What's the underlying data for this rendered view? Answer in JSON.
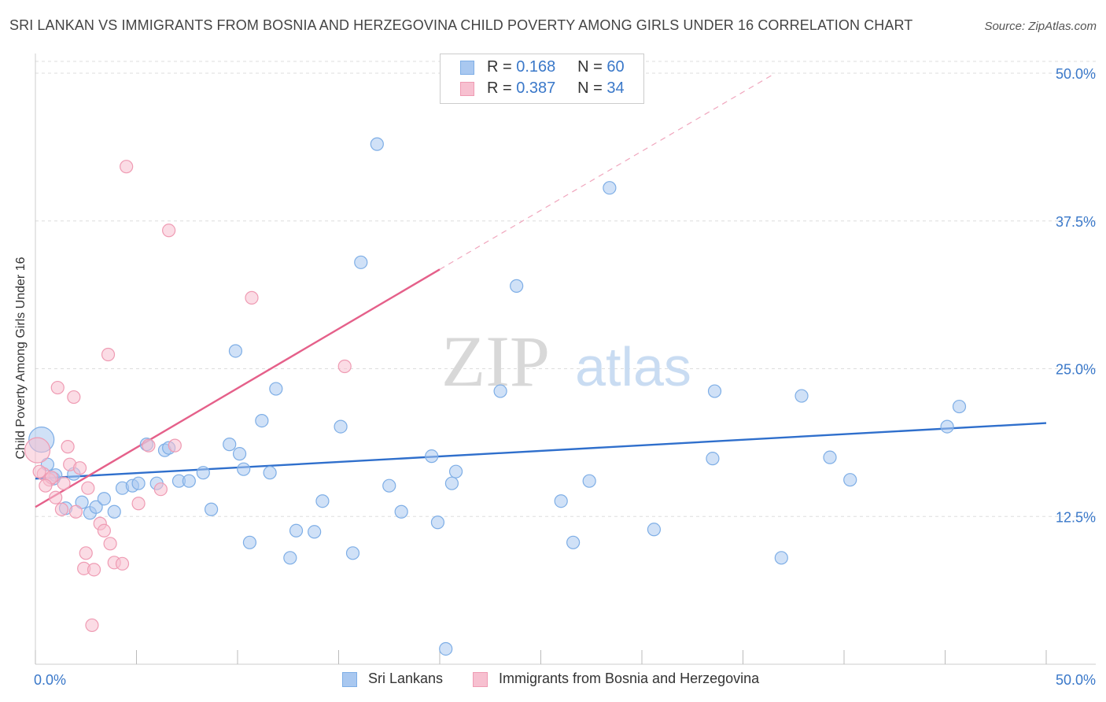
{
  "title": "SRI LANKAN VS IMMIGRANTS FROM BOSNIA AND HERZEGOVINA CHILD POVERTY AMONG GIRLS UNDER 16 CORRELATION CHART",
  "source": "Source: ZipAtlas.com",
  "watermark": {
    "zip": "ZIP",
    "atlas": "atlas"
  },
  "legend_top": [
    {
      "r_label": "R =",
      "r_value": "0.168",
      "n_label": "N =",
      "n_value": "60",
      "color": "#a9c8f0",
      "border": "#7eaee6"
    },
    {
      "r_label": "R =",
      "r_value": "0.387",
      "n_label": "N =",
      "n_value": "34",
      "color": "#f7c0d0",
      "border": "#ef9bb3"
    }
  ],
  "legend_bottom": [
    {
      "label": "Sri Lankans",
      "color": "#a9c8f0",
      "border": "#7eaee6"
    },
    {
      "label": "Immigrants from Bosnia and Herzegovina",
      "color": "#f7c0d0",
      "border": "#ef9bb3"
    }
  ],
  "chart_data": {
    "type": "scatter",
    "title": "SRI LANKAN VS IMMIGRANTS FROM BOSNIA AND HERZEGOVINA CHILD POVERTY AMONG GIRLS UNDER 16 CORRELATION CHART",
    "xlabel": "",
    "ylabel": "Child Poverty Among Girls Under 16",
    "xlim": [
      0,
      50
    ],
    "ylim": [
      0,
      51
    ],
    "x_tick_labels": [
      "0.0%",
      "50.0%"
    ],
    "y_ticks": [
      12.5,
      25.0,
      37.5,
      50.0
    ],
    "y_tick_labels": [
      "12.5%",
      "25.0%",
      "37.5%",
      "50.0%"
    ],
    "grid": true,
    "legend_position": "top-center",
    "series": [
      {
        "name": "Sri Lankans",
        "color": "#7eaee6",
        "fill": "#a9c8f0",
        "trend": {
          "x": [
            0,
            50
          ],
          "y": [
            15.7,
            20.4
          ],
          "color": "#2f6fcc"
        },
        "points": [
          {
            "x": 0.3,
            "y": 19.0,
            "big": true
          },
          {
            "x": 0.6,
            "y": 16.9
          },
          {
            "x": 0.9,
            "y": 15.7
          },
          {
            "x": 1.0,
            "y": 16.0
          },
          {
            "x": 1.5,
            "y": 13.2
          },
          {
            "x": 1.9,
            "y": 16.1
          },
          {
            "x": 2.3,
            "y": 13.7
          },
          {
            "x": 2.7,
            "y": 12.8
          },
          {
            "x": 3.0,
            "y": 13.3
          },
          {
            "x": 3.4,
            "y": 14.0
          },
          {
            "x": 3.9,
            "y": 12.9
          },
          {
            "x": 4.3,
            "y": 14.9
          },
          {
            "x": 4.8,
            "y": 15.1
          },
          {
            "x": 5.1,
            "y": 15.3
          },
          {
            "x": 5.5,
            "y": 18.6
          },
          {
            "x": 6.0,
            "y": 15.3
          },
          {
            "x": 6.4,
            "y": 18.1
          },
          {
            "x": 6.6,
            "y": 18.3
          },
          {
            "x": 7.1,
            "y": 15.5
          },
          {
            "x": 7.6,
            "y": 15.5
          },
          {
            "x": 8.3,
            "y": 16.2
          },
          {
            "x": 8.7,
            "y": 13.1
          },
          {
            "x": 9.6,
            "y": 18.6
          },
          {
            "x": 10.1,
            "y": 17.8
          },
          {
            "x": 9.9,
            "y": 26.5
          },
          {
            "x": 10.3,
            "y": 16.5
          },
          {
            "x": 10.6,
            "y": 10.3
          },
          {
            "x": 11.2,
            "y": 20.6
          },
          {
            "x": 11.6,
            "y": 16.2
          },
          {
            "x": 11.9,
            "y": 23.3
          },
          {
            "x": 12.6,
            "y": 9.0
          },
          {
            "x": 12.9,
            "y": 11.3
          },
          {
            "x": 13.8,
            "y": 11.2
          },
          {
            "x": 14.2,
            "y": 13.8
          },
          {
            "x": 15.1,
            "y": 20.1
          },
          {
            "x": 15.7,
            "y": 9.4
          },
          {
            "x": 16.1,
            "y": 34.0
          },
          {
            "x": 16.9,
            "y": 44.0
          },
          {
            "x": 17.5,
            "y": 15.1
          },
          {
            "x": 18.1,
            "y": 12.9
          },
          {
            "x": 19.6,
            "y": 17.6
          },
          {
            "x": 19.9,
            "y": 12.0
          },
          {
            "x": 20.6,
            "y": 15.3
          },
          {
            "x": 20.8,
            "y": 16.3
          },
          {
            "x": 20.3,
            "y": 1.3
          },
          {
            "x": 23.0,
            "y": 23.1
          },
          {
            "x": 23.8,
            "y": 32.0
          },
          {
            "x": 26.0,
            "y": 13.8
          },
          {
            "x": 26.6,
            "y": 10.3
          },
          {
            "x": 27.4,
            "y": 15.5
          },
          {
            "x": 28.4,
            "y": 40.3
          },
          {
            "x": 30.6,
            "y": 11.4
          },
          {
            "x": 33.5,
            "y": 17.4
          },
          {
            "x": 33.6,
            "y": 23.1
          },
          {
            "x": 36.9,
            "y": 9.0
          },
          {
            "x": 37.9,
            "y": 22.7
          },
          {
            "x": 39.3,
            "y": 17.5
          },
          {
            "x": 40.3,
            "y": 15.6
          },
          {
            "x": 45.1,
            "y": 20.1
          },
          {
            "x": 45.7,
            "y": 21.8
          }
        ]
      },
      {
        "name": "Immigrants from Bosnia and Herzegovina",
        "color": "#ef9bb3",
        "fill": "#f7c0d0",
        "trend": {
          "x": [
            0,
            20
          ],
          "y": [
            13.3,
            33.4
          ],
          "dashed_to": {
            "x": 36.6,
            "y": 50.0
          },
          "color": "#e5608a"
        },
        "points": [
          {
            "x": 0.1,
            "y": 18.1,
            "big": true
          },
          {
            "x": 0.4,
            "y": 16.1
          },
          {
            "x": 0.7,
            "y": 15.6
          },
          {
            "x": 1.0,
            "y": 14.1
          },
          {
            "x": 1.1,
            "y": 23.4
          },
          {
            "x": 1.3,
            "y": 13.1
          },
          {
            "x": 1.6,
            "y": 18.4
          },
          {
            "x": 1.7,
            "y": 16.9
          },
          {
            "x": 1.9,
            "y": 22.6
          },
          {
            "x": 2.0,
            "y": 12.9
          },
          {
            "x": 2.2,
            "y": 16.6
          },
          {
            "x": 2.5,
            "y": 9.4
          },
          {
            "x": 2.4,
            "y": 8.1
          },
          {
            "x": 2.8,
            "y": 3.3
          },
          {
            "x": 2.9,
            "y": 8.0
          },
          {
            "x": 3.2,
            "y": 11.9
          },
          {
            "x": 3.4,
            "y": 11.3
          },
          {
            "x": 3.7,
            "y": 10.2
          },
          {
            "x": 3.9,
            "y": 8.6
          },
          {
            "x": 4.3,
            "y": 8.5
          },
          {
            "x": 4.5,
            "y": 42.1
          },
          {
            "x": 5.1,
            "y": 13.6
          },
          {
            "x": 5.6,
            "y": 18.5
          },
          {
            "x": 6.2,
            "y": 14.8
          },
          {
            "x": 6.6,
            "y": 36.7
          },
          {
            "x": 6.9,
            "y": 18.5
          },
          {
            "x": 3.6,
            "y": 26.2
          },
          {
            "x": 10.7,
            "y": 31.0
          },
          {
            "x": 15.3,
            "y": 25.2
          },
          {
            "x": 0.8,
            "y": 15.8
          },
          {
            "x": 1.4,
            "y": 15.3
          },
          {
            "x": 0.2,
            "y": 16.3
          },
          {
            "x": 2.6,
            "y": 14.9
          },
          {
            "x": 0.5,
            "y": 15.1
          }
        ]
      }
    ]
  }
}
